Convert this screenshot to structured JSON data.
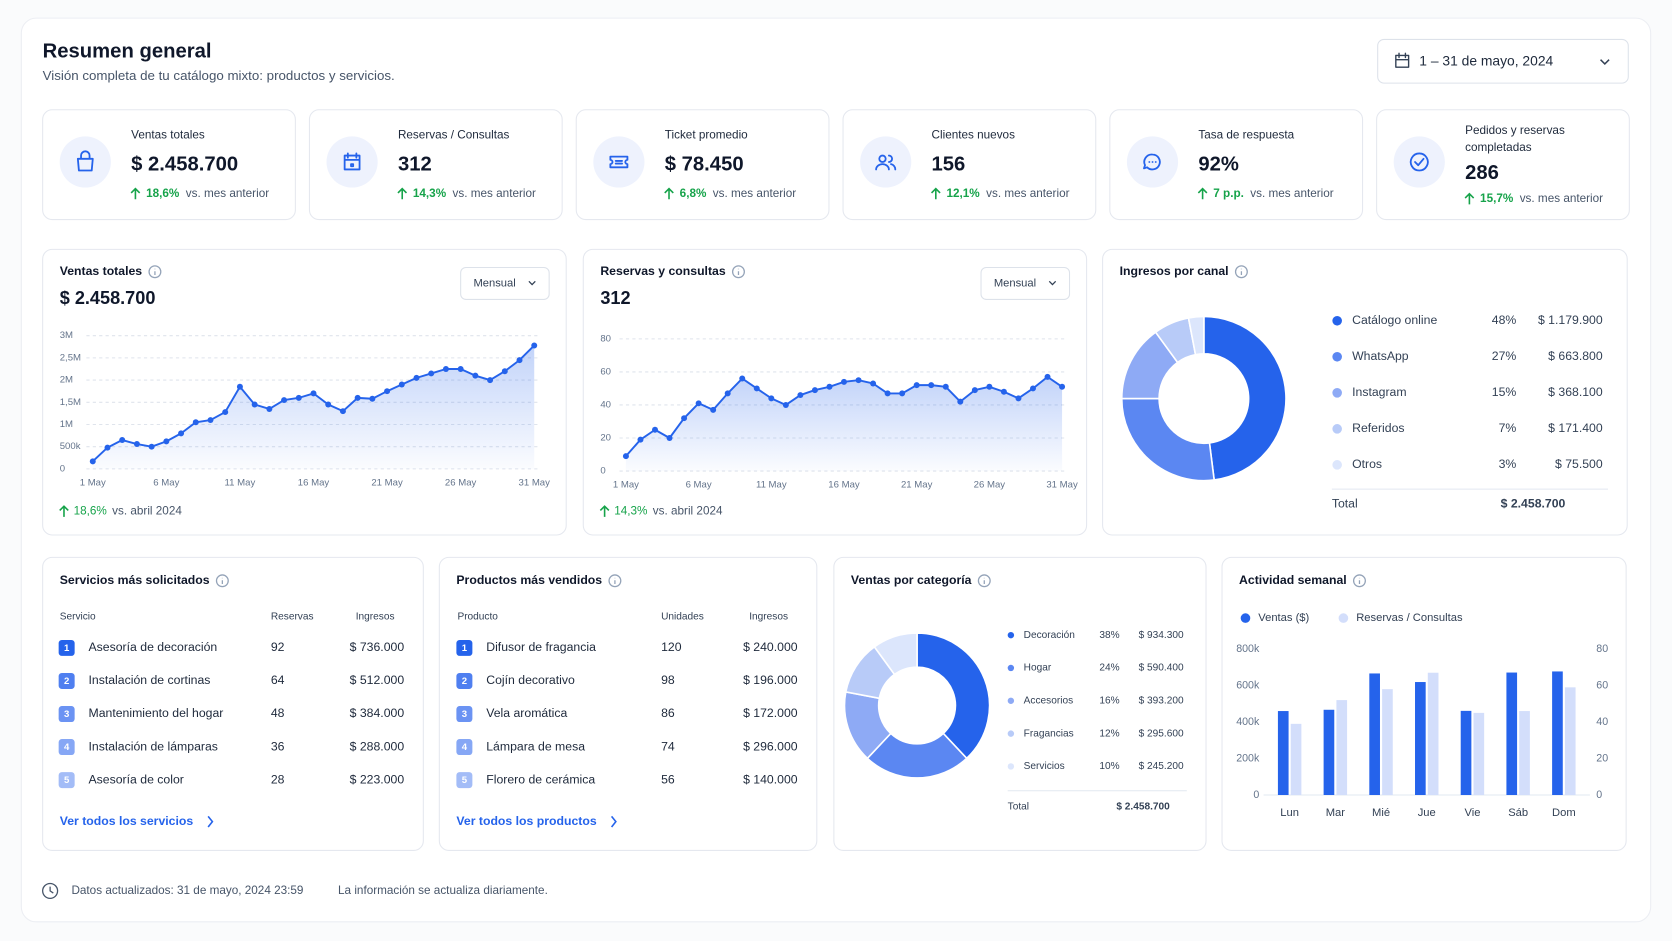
{
  "header": {
    "title": "Resumen general",
    "subtitle": "Visión completa de tu catálogo mixto: productos y servicios.",
    "date_range": "1 – 31 de mayo, 2024"
  },
  "kpis": [
    {
      "label": "Ventas totales",
      "value": "$ 2.458.700",
      "change": "18,6%",
      "compare": "vs. mes anterior"
    },
    {
      "label": "Reservas / Consultas",
      "value": "312",
      "change": "14,3%",
      "compare": "vs. mes anterior"
    },
    {
      "label": "Ticket promedio",
      "value": "$ 78.450",
      "change": "6,8%",
      "compare": "vs. mes anterior"
    },
    {
      "label": "Clientes nuevos",
      "value": "156",
      "change": "12,1%",
      "compare": "vs. mes anterior"
    },
    {
      "label": "Tasa de respuesta",
      "value": "92%",
      "change": "7 p.p.",
      "compare": "vs. mes anterior"
    },
    {
      "label": "Pedidos y reservas completadas",
      "value": "286",
      "change": "15,7%",
      "compare": "vs. mes anterior"
    }
  ],
  "chart_data": [
    {
      "type": "line",
      "title": "Ventas totales",
      "headline": "$ 2.458.700",
      "period": "Mensual",
      "change": "18,6%",
      "comparison": "vs. abril 2024",
      "color": "#2563eb",
      "grid": true,
      "categories": [
        "1 May",
        null,
        null,
        null,
        null,
        "6 May",
        null,
        null,
        null,
        null,
        "11 May",
        null,
        null,
        null,
        null,
        "16 May",
        null,
        null,
        null,
        null,
        "21 May",
        null,
        null,
        null,
        null,
        "26 May",
        null,
        null,
        null,
        null,
        "31 May"
      ],
      "values": [
        170000,
        480000,
        650000,
        560000,
        500000,
        620000,
        800000,
        1050000,
        1100000,
        1280000,
        1850000,
        1450000,
        1350000,
        1550000,
        1600000,
        1700000,
        1450000,
        1300000,
        1600000,
        1580000,
        1750000,
        1900000,
        2050000,
        2150000,
        2250000,
        2250000,
        2100000,
        2000000,
        2200000,
        2450000,
        2780000
      ],
      "ylim": [
        0,
        3000000
      ],
      "yticks": [
        0,
        {
          "value": 500000,
          "label": "500k"
        },
        {
          "value": 1000000,
          "label": "1M"
        },
        {
          "value": 1500000,
          "label": "1,5M"
        },
        {
          "value": 2000000,
          "label": "2M"
        },
        {
          "value": 2500000,
          "label": "2,5M"
        },
        {
          "value": 3000000,
          "label": "3M"
        }
      ]
    },
    {
      "type": "line",
      "title": "Reservas y consultas",
      "headline": "312",
      "period": "Mensual",
      "change": "14,3%",
      "comparison": "vs. abril 2024",
      "color": "#2563eb",
      "grid": true,
      "categories": [
        "1 May",
        null,
        null,
        null,
        null,
        "6 May",
        null,
        null,
        null,
        null,
        "11 May",
        null,
        null,
        null,
        null,
        "16 May",
        null,
        null,
        null,
        null,
        "21 May",
        null,
        null,
        null,
        null,
        "26 May",
        null,
        null,
        null,
        null,
        "31 May"
      ],
      "values": [
        9,
        19,
        25,
        20,
        32,
        41,
        37,
        47,
        56,
        50,
        44,
        40,
        46,
        49,
        51,
        54,
        55,
        53,
        47,
        47,
        52,
        52,
        51,
        42,
        49,
        51,
        48,
        44,
        50,
        57,
        51
      ],
      "ylim": [
        0,
        80
      ],
      "yticks": [
        0,
        20,
        40,
        60,
        80
      ]
    },
    {
      "type": "pie",
      "title": "Ingresos por canal",
      "categories": [
        "Catálogo online",
        "WhatsApp",
        "Instagram",
        "Referidos",
        "Otros"
      ],
      "values": [
        48,
        27,
        15,
        7,
        3
      ],
      "value_labels": [
        "48%",
        "27%",
        "15%",
        "7%",
        "3%"
      ],
      "amounts": [
        "$ 1.179.900",
        "$ 663.800",
        "$ 368.100",
        "$ 171.400",
        "$ 75.500"
      ],
      "colors": [
        "#2563eb",
        "#5b87f2",
        "#8eaaf5",
        "#b8cbf8",
        "#dce6fc"
      ],
      "total_label": "Total",
      "total": "$ 2.458.700"
    },
    {
      "type": "pie",
      "title": "Ventas por categoría",
      "categories": [
        "Decoración",
        "Hogar",
        "Accesorios",
        "Fragancias",
        "Servicios"
      ],
      "values": [
        38,
        24,
        16,
        12,
        10
      ],
      "value_labels": [
        "38%",
        "24%",
        "16%",
        "12%",
        "10%"
      ],
      "amounts": [
        "$ 934.300",
        "$ 590.400",
        "$ 393.200",
        "$ 295.600",
        "$ 245.200"
      ],
      "colors": [
        "#2563eb",
        "#5b87f2",
        "#8eaaf5",
        "#b8cbf8",
        "#dce6fc"
      ],
      "total_label": "Total",
      "total": "$ 2.458.700"
    },
    {
      "type": "bar",
      "title": "Actividad semanal",
      "grid": false,
      "categories": [
        "Lun",
        "Mar",
        "Mié",
        "Jue",
        "Vie",
        "Sáb",
        "Dom"
      ],
      "series": [
        {
          "name": "Ventas ($)",
          "color": "#2563eb",
          "values": [
            460000,
            467000,
            666000,
            619000,
            461000,
            671000,
            677000
          ]
        },
        {
          "name": "Reservas / Consultas",
          "color": "#d3defb",
          "axis": "y2",
          "values": [
            39,
            52,
            58,
            67,
            45,
            46,
            59
          ]
        }
      ],
      "ylim": [
        0,
        800000
      ],
      "yticks": [
        0,
        {
          "value": 200000,
          "label": "200k"
        },
        {
          "value": 400000,
          "label": "400k"
        },
        {
          "value": 600000,
          "label": "600k"
        },
        {
          "value": 800000,
          "label": "800k"
        }
      ],
      "y2lim": [
        0,
        80
      ],
      "y2ticks": [
        0,
        20,
        40,
        60,
        80
      ]
    }
  ],
  "tables": [
    {
      "title": "Servicios más solicitados",
      "columns": [
        "Servicio",
        "Reservas",
        "Ingresos"
      ],
      "rows": [
        [
          1,
          "Asesoría de decoración",
          92,
          "$ 736.000"
        ],
        [
          2,
          "Instalación de cortinas",
          64,
          "$ 512.000"
        ],
        [
          3,
          "Mantenimiento del hogar",
          48,
          "$ 384.000"
        ],
        [
          4,
          "Instalación de lámparas",
          36,
          "$ 288.000"
        ],
        [
          5,
          "Asesoría de color",
          28,
          "$ 223.000"
        ]
      ],
      "link": "Ver todos los servicios"
    },
    {
      "title": "Productos más vendidos",
      "columns": [
        "Producto",
        "Unidades",
        "Ingresos"
      ],
      "rows": [
        [
          1,
          "Difusor de fragancia",
          120,
          "$ 240.000"
        ],
        [
          2,
          "Cojín decorativo",
          98,
          "$ 196.000"
        ],
        [
          3,
          "Vela aromática",
          86,
          "$ 172.000"
        ],
        [
          4,
          "Lámpara de mesa",
          74,
          "$ 296.000"
        ],
        [
          5,
          "Florero de cerámica",
          56,
          "$ 140.000"
        ]
      ],
      "link": "Ver todos los productos"
    }
  ],
  "footer": {
    "updated": "Datos actualizados: 31 de mayo, 2024 23:59",
    "note": "La información se actualiza diariamente."
  }
}
